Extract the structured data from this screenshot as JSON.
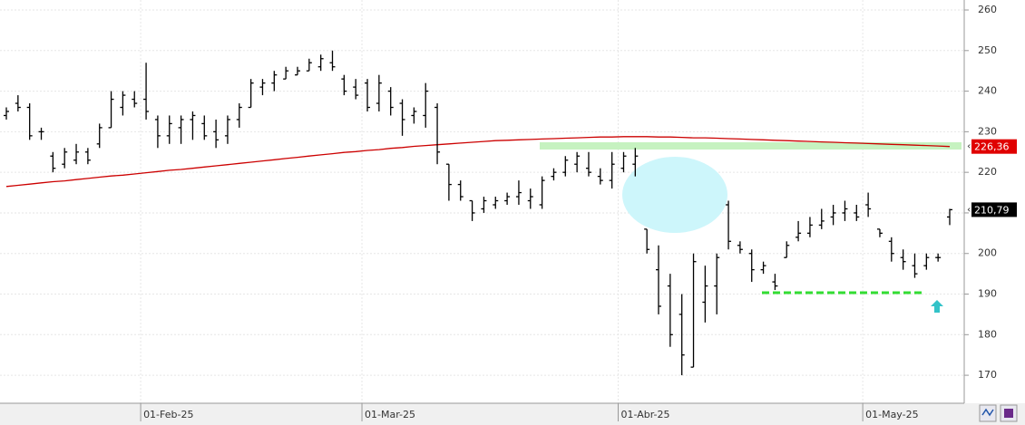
{
  "chart_data": {
    "type": "ohlc",
    "categories": [
      null,
      null,
      null,
      null,
      null,
      null,
      null,
      null,
      null,
      null,
      null,
      null,
      "01-Feb-25",
      null,
      null,
      null,
      null,
      null,
      null,
      null,
      null,
      null,
      null,
      null,
      null,
      null,
      null,
      null,
      null,
      null,
      null,
      "01-Mar-25",
      null,
      null,
      null,
      null,
      null,
      null,
      null,
      null,
      null,
      null,
      null,
      null,
      null,
      null,
      null,
      null,
      null,
      null,
      null,
      null,
      null,
      "01-Abr-25",
      null,
      null,
      null,
      null,
      null,
      null,
      null,
      null,
      null,
      null,
      null,
      null,
      null,
      null,
      null,
      null,
      null,
      null,
      null,
      null,
      "01-May-25",
      null,
      null,
      null,
      null,
      null,
      null,
      null
    ],
    "open": [
      234,
      237,
      236,
      230,
      224,
      222,
      223,
      225,
      227,
      231,
      236,
      238,
      238,
      233,
      229,
      231,
      233,
      232,
      230,
      229,
      233,
      236,
      241,
      242,
      243,
      244,
      245,
      246,
      247,
      243,
      241,
      242,
      237,
      240,
      237,
      234,
      234,
      236,
      222,
      217,
      213,
      211,
      212,
      213,
      214,
      213,
      212,
      219,
      220,
      222,
      221,
      219,
      218,
      221,
      222,
      206,
      196,
      192,
      185,
      172,
      188,
      192,
      212,
      202,
      200,
      196,
      193,
      199,
      204,
      205,
      207,
      209,
      210,
      210,
      212,
      206,
      203,
      199,
      197,
      197,
      199,
      209
    ],
    "high": [
      236,
      239,
      237,
      231,
      225,
      226,
      227,
      226,
      232,
      240,
      240,
      240,
      247,
      234,
      234,
      234,
      235,
      234,
      233,
      234,
      237,
      243,
      243,
      245,
      246,
      246,
      248,
      249,
      250,
      244,
      243,
      243,
      244,
      241,
      238,
      236,
      242,
      237,
      222,
      218,
      213,
      214,
      214,
      215,
      218,
      216,
      219,
      221,
      224,
      225,
      225,
      221,
      225,
      225,
      226,
      206,
      202,
      195,
      190,
      200,
      197,
      200,
      213,
      203,
      201,
      198,
      195,
      203,
      208,
      209,
      211,
      212,
      213,
      212,
      215,
      206,
      204,
      201,
      200,
      200,
      200,
      211
    ],
    "low": [
      233,
      235,
      228,
      228,
      220,
      221,
      222,
      222,
      226,
      231,
      234,
      236,
      233,
      226,
      227,
      227,
      228,
      228,
      226,
      227,
      231,
      236,
      239,
      240,
      243,
      244,
      245,
      245,
      245,
      239,
      238,
      235,
      235,
      234,
      229,
      232,
      231,
      222,
      213,
      213,
      208,
      210,
      211,
      212,
      212,
      211,
      211,
      218,
      219,
      220,
      219,
      217,
      216,
      220,
      219,
      200,
      185,
      177,
      170,
      172,
      183,
      185,
      201,
      200,
      193,
      195,
      191,
      199,
      203,
      204,
      206,
      207,
      208,
      208,
      209,
      204,
      198,
      196,
      194,
      196,
      198,
      207
    ],
    "close": [
      235,
      236,
      229,
      230,
      221,
      225,
      225,
      223,
      231,
      238,
      239,
      237,
      235,
      229,
      232,
      233,
      234,
      229,
      228,
      233,
      236,
      242,
      242,
      244,
      245,
      245,
      247,
      248,
      246,
      240,
      239,
      236,
      242,
      236,
      233,
      235,
      240,
      225,
      217,
      214,
      210,
      213,
      213,
      214,
      215,
      214,
      218,
      220,
      223,
      224,
      220,
      218,
      222,
      224,
      224,
      201,
      187,
      180,
      175,
      198,
      192,
      199,
      203,
      201,
      196,
      197,
      192,
      202,
      205,
      207,
      208,
      210,
      211,
      209,
      211,
      205,
      200,
      198,
      195,
      199,
      199,
      210.79
    ],
    "color": "#000000",
    "moving_average": {
      "color": "#cc0000",
      "values": [
        216.5,
        216.8,
        217.1,
        217.4,
        217.7,
        217.9,
        218.2,
        218.5,
        218.8,
        219.1,
        219.3,
        219.6,
        219.9,
        220.2,
        220.5,
        220.7,
        221.0,
        221.3,
        221.6,
        221.9,
        222.2,
        222.5,
        222.8,
        223.1,
        223.4,
        223.7,
        224.0,
        224.3,
        224.6,
        224.9,
        225.1,
        225.4,
        225.6,
        225.9,
        226.1,
        226.4,
        226.6,
        226.8,
        227.0,
        227.2,
        227.4,
        227.6,
        227.8,
        227.9,
        228.0,
        228.1,
        228.2,
        228.3,
        228.4,
        228.5,
        228.6,
        228.7,
        228.7,
        228.8,
        228.8,
        228.8,
        228.7,
        228.7,
        228.6,
        228.5,
        228.5,
        228.4,
        228.3,
        228.2,
        228.1,
        228.0,
        227.9,
        227.8,
        227.7,
        227.6,
        227.5,
        227.4,
        227.3,
        227.2,
        227.1,
        227.0,
        226.9,
        226.8,
        226.7,
        226.6,
        226.5,
        226.36
      ]
    },
    "price_labels": [
      {
        "value": 226.36,
        "label": "226,36",
        "color": "#e00000"
      },
      {
        "value": 210.79,
        "label": "210,79",
        "color": "#000000"
      }
    ],
    "ylim": [
      163.1,
      262.46
    ],
    "yticks": [
      170,
      180,
      190,
      200,
      210,
      220,
      230,
      240,
      250,
      260
    ],
    "grid": true
  }
}
